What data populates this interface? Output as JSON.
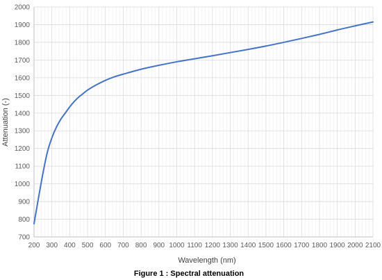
{
  "chart_data": {
    "type": "line",
    "title": "",
    "caption": "Figure 1 : Spectral attenuation",
    "xlabel": "Wavelength (nm)",
    "ylabel": "Attenuation (-)",
    "xlim": [
      200,
      2100
    ],
    "ylim": [
      700,
      2000
    ],
    "x_ticks": [
      200,
      300,
      400,
      500,
      600,
      700,
      800,
      900,
      1000,
      1100,
      1200,
      1300,
      1400,
      1500,
      1600,
      1700,
      1800,
      1900,
      2000,
      2100
    ],
    "y_ticks": [
      700,
      800,
      900,
      1000,
      1100,
      1200,
      1300,
      1400,
      1500,
      1600,
      1700,
      1800,
      1900,
      2000
    ],
    "grid": true,
    "legend": "none",
    "colors": {
      "line": "#4472c4",
      "grid": "#d9d9d9",
      "tick_label": "#595959"
    },
    "series": [
      {
        "x": [
          200,
          225,
          250,
          275,
          300,
          325,
          350,
          375,
          400,
          425,
          450,
          475,
          500,
          550,
          600,
          650,
          700,
          800,
          900,
          1000,
          1100,
          1200,
          1300,
          1400,
          1500,
          1600,
          1700,
          1800,
          1900,
          2000,
          2100
        ],
        "values": [
          775,
          920,
          1060,
          1180,
          1260,
          1320,
          1365,
          1400,
          1435,
          1465,
          1490,
          1510,
          1530,
          1560,
          1585,
          1605,
          1620,
          1648,
          1670,
          1690,
          1707,
          1724,
          1742,
          1760,
          1779,
          1800,
          1822,
          1845,
          1870,
          1893,
          1915
        ]
      }
    ]
  }
}
